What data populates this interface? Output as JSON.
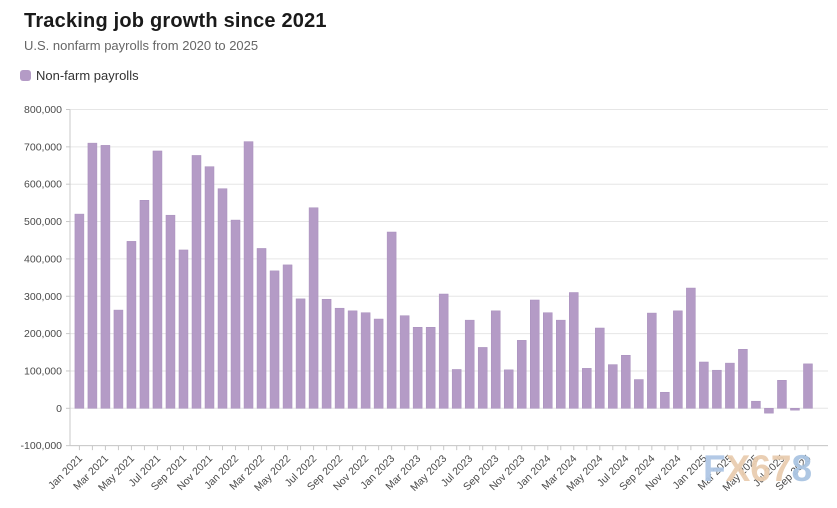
{
  "header": {
    "title": "Tracking job growth since 2021",
    "subtitle": "U.S. nonfarm payrolls from 2020 to 2025"
  },
  "legend": {
    "label": "Non-farm payrolls",
    "swatch_color": "#b49bc6"
  },
  "watermark": {
    "text": "FX678",
    "letters": [
      {
        "ch": "F",
        "color": "#afc7e5"
      },
      {
        "ch": "X",
        "color": "#e9cdb0"
      },
      {
        "ch": "6",
        "color": "#e9cdb0"
      },
      {
        "ch": "7",
        "color": "#e9cdb0"
      },
      {
        "ch": "8",
        "color": "#aac5e2"
      }
    ]
  },
  "chart_data": {
    "type": "bar",
    "title": "Tracking job growth since 2021",
    "subtitle": "U.S. nonfarm payrolls from 2020 to 2025",
    "series_name": "Non-farm payrolls",
    "bar_color": "#b49bc6",
    "bar_edge_color": "#a88fbc",
    "grid": true,
    "grid_color": "#e6e6e6",
    "axis_color": "#c8c8c8",
    "tick_label_color": "#4a4a4a",
    "legend_position": "top-left",
    "ylim": [
      -100000,
      800000
    ],
    "ytick_interval": 100000,
    "ytick_labels": [
      "-100,000",
      "0",
      "100,000",
      "200,000",
      "300,000",
      "400,000",
      "500,000",
      "600,000",
      "700,000",
      "800,000"
    ],
    "xtick_label_every": 2,
    "x": [
      "Jan 2021",
      "Feb 2021",
      "Mar 2021",
      "Apr 2021",
      "May 2021",
      "Jun 2021",
      "Jul 2021",
      "Aug 2021",
      "Sep 2021",
      "Oct 2021",
      "Nov 2021",
      "Dec 2021",
      "Jan 2022",
      "Feb 2022",
      "Mar 2022",
      "Apr 2022",
      "May 2022",
      "Jun 2022",
      "Jul 2022",
      "Aug 2022",
      "Sep 2022",
      "Oct 2022",
      "Nov 2022",
      "Dec 2022",
      "Jan 2023",
      "Feb 2023",
      "Mar 2023",
      "Apr 2023",
      "May 2023",
      "Jun 2023",
      "Jul 2023",
      "Aug 2023",
      "Sep 2023",
      "Oct 2023",
      "Nov 2023",
      "Dec 2023",
      "Jan 2024",
      "Feb 2024",
      "Mar 2024",
      "Apr 2024",
      "May 2024",
      "Jun 2024",
      "Jul 2024",
      "Aug 2024",
      "Sep 2024",
      "Oct 2024",
      "Nov 2024",
      "Dec 2024",
      "Jan 2025",
      "Feb 2025",
      "Mar 2025",
      "Apr 2025",
      "May 2025",
      "Jun 2025",
      "Jul 2025",
      "Aug 2025",
      "Sep 2025"
    ],
    "values": [
      520000,
      710000,
      704000,
      263000,
      447000,
      557000,
      689000,
      517000,
      424000,
      677000,
      647000,
      588000,
      504000,
      714000,
      428000,
      368000,
      384000,
      293000,
      537000,
      292000,
      268000,
      261000,
      256000,
      239000,
      472000,
      248000,
      217000,
      217000,
      306000,
      104000,
      236000,
      163000,
      261000,
      103000,
      182000,
      290000,
      256000,
      236000,
      310000,
      107000,
      215000,
      117000,
      142000,
      77000,
      255000,
      43000,
      261000,
      322000,
      124000,
      102000,
      121000,
      158000,
      19000,
      -13000,
      75000,
      -5000,
      119000
    ]
  }
}
